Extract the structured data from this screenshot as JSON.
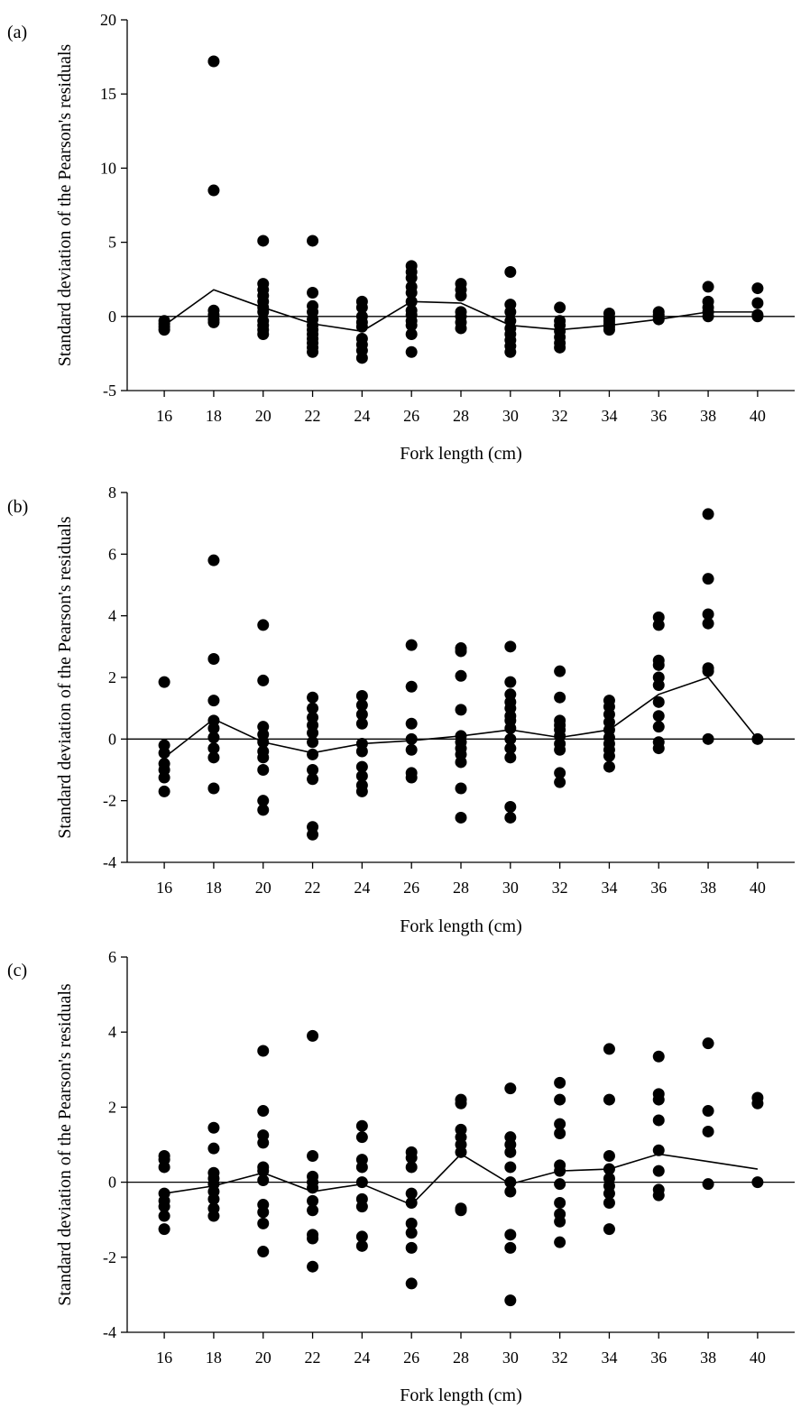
{
  "figure": {
    "colors": {
      "ink": "#000000",
      "background": "#ffffff"
    }
  },
  "chart_data": [
    {
      "type": "scatter",
      "panel_label": "(a)",
      "xlabel": "Fork length (cm)",
      "ylabel": "Standard deviation of the Pearson's residuals",
      "xlim": [
        14.5,
        41.5
      ],
      "ylim": [
        -5,
        20
      ],
      "x_ticks": [
        16,
        18,
        20,
        22,
        24,
        26,
        28,
        30,
        32,
        34,
        36,
        38,
        40
      ],
      "y_ticks": [
        -5,
        0,
        5,
        10,
        15,
        20
      ],
      "y_tick_labels": [
        "-5",
        "0",
        "5",
        "10",
        "15",
        "20"
      ],
      "reference_line_y": 0,
      "points": [
        [
          16,
          -0.3
        ],
        [
          16,
          -0.5
        ],
        [
          16,
          -0.7
        ],
        [
          16,
          -0.9
        ],
        [
          18,
          17.2
        ],
        [
          18,
          8.5
        ],
        [
          18,
          0.4
        ],
        [
          18,
          0.1
        ],
        [
          18,
          -0.2
        ],
        [
          18,
          -0.4
        ],
        [
          20,
          5.1
        ],
        [
          20,
          2.2
        ],
        [
          20,
          1.8
        ],
        [
          20,
          1.4
        ],
        [
          20,
          1.0
        ],
        [
          20,
          0.6
        ],
        [
          20,
          0.3
        ],
        [
          20,
          -0.3
        ],
        [
          20,
          -0.6
        ],
        [
          20,
          -0.9
        ],
        [
          20,
          -1.2
        ],
        [
          22,
          5.1
        ],
        [
          22,
          1.6
        ],
        [
          22,
          0.7
        ],
        [
          22,
          0.3
        ],
        [
          22,
          -0.2
        ],
        [
          22,
          -0.6
        ],
        [
          22,
          -0.9
        ],
        [
          22,
          -1.2
        ],
        [
          22,
          -1.5
        ],
        [
          22,
          -1.8
        ],
        [
          22,
          -2.1
        ],
        [
          22,
          -2.4
        ],
        [
          24,
          1.0
        ],
        [
          24,
          0.6
        ],
        [
          24,
          0.0
        ],
        [
          24,
          -0.4
        ],
        [
          24,
          -0.7
        ],
        [
          24,
          -1.5
        ],
        [
          24,
          -1.9
        ],
        [
          24,
          -2.3
        ],
        [
          24,
          -2.8
        ],
        [
          26,
          3.4
        ],
        [
          26,
          3.0
        ],
        [
          26,
          2.6
        ],
        [
          26,
          2.0
        ],
        [
          26,
          1.6
        ],
        [
          26,
          1.0
        ],
        [
          26,
          0.4
        ],
        [
          26,
          0.1
        ],
        [
          26,
          -0.3
        ],
        [
          26,
          -0.6
        ],
        [
          26,
          -1.2
        ],
        [
          26,
          -2.4
        ],
        [
          28,
          2.2
        ],
        [
          28,
          1.8
        ],
        [
          28,
          1.4
        ],
        [
          28,
          0.3
        ],
        [
          28,
          0.0
        ],
        [
          28,
          -0.4
        ],
        [
          28,
          -0.8
        ],
        [
          30,
          3.0
        ],
        [
          30,
          0.8
        ],
        [
          30,
          0.3
        ],
        [
          30,
          -0.3
        ],
        [
          30,
          -0.8
        ],
        [
          30,
          -1.2
        ],
        [
          30,
          -1.6
        ],
        [
          30,
          -2.0
        ],
        [
          30,
          -2.4
        ],
        [
          32,
          0.6
        ],
        [
          32,
          -0.3
        ],
        [
          32,
          -0.6
        ],
        [
          32,
          -1.0
        ],
        [
          32,
          -1.4
        ],
        [
          32,
          -1.8
        ],
        [
          32,
          -2.1
        ],
        [
          34,
          0.2
        ],
        [
          34,
          -0.1
        ],
        [
          34,
          -0.3
        ],
        [
          34,
          -0.5
        ],
        [
          34,
          -0.7
        ],
        [
          34,
          -0.9
        ],
        [
          36,
          0.3
        ],
        [
          36,
          0.1
        ],
        [
          36,
          -0.1
        ],
        [
          36,
          -0.2
        ],
        [
          38,
          2.0
        ],
        [
          38,
          1.0
        ],
        [
          38,
          0.6
        ],
        [
          38,
          0.3
        ],
        [
          38,
          0.0
        ],
        [
          40,
          1.9
        ],
        [
          40,
          0.9
        ],
        [
          40,
          0.1
        ],
        [
          40,
          0.0
        ]
      ],
      "line": {
        "x": [
          16,
          18,
          20,
          22,
          24,
          26,
          28,
          30,
          32,
          34,
          36,
          38,
          40
        ],
        "y": [
          -0.6,
          1.8,
          0.6,
          -0.5,
          -1.0,
          1.0,
          0.9,
          -0.6,
          -0.9,
          -0.6,
          -0.2,
          0.3,
          0.3
        ]
      }
    },
    {
      "type": "scatter",
      "panel_label": "(b)",
      "xlabel": "Fork length (cm)",
      "ylabel": "Standard deviation of the Pearson's residuals",
      "xlim": [
        14.5,
        41.5
      ],
      "ylim": [
        -4,
        8
      ],
      "x_ticks": [
        16,
        18,
        20,
        22,
        24,
        26,
        28,
        30,
        32,
        34,
        36,
        38,
        40
      ],
      "y_ticks": [
        -4,
        -2,
        0,
        2,
        4,
        6,
        8
      ],
      "y_tick_labels": [
        "-4",
        "-2",
        "0",
        "2",
        "4",
        "6",
        "8"
      ],
      "reference_line_y": 0,
      "points": [
        [
          16,
          1.85
        ],
        [
          16,
          -0.2
        ],
        [
          16,
          -0.45
        ],
        [
          16,
          -0.8
        ],
        [
          16,
          -1.0
        ],
        [
          16,
          -1.25
        ],
        [
          16,
          -1.7
        ],
        [
          18,
          5.8
        ],
        [
          18,
          2.6
        ],
        [
          18,
          1.25
        ],
        [
          18,
          0.6
        ],
        [
          18,
          0.35
        ],
        [
          18,
          0.05
        ],
        [
          18,
          -0.3
        ],
        [
          18,
          -0.6
        ],
        [
          18,
          -1.6
        ],
        [
          20,
          3.7
        ],
        [
          20,
          1.9
        ],
        [
          20,
          0.4
        ],
        [
          20,
          0.15
        ],
        [
          20,
          -0.1
        ],
        [
          20,
          -0.4
        ],
        [
          20,
          -0.6
        ],
        [
          20,
          -1.0
        ],
        [
          20,
          -2.0
        ],
        [
          20,
          -2.3
        ],
        [
          22,
          1.35
        ],
        [
          22,
          1.0
        ],
        [
          22,
          0.7
        ],
        [
          22,
          0.45
        ],
        [
          22,
          0.2
        ],
        [
          22,
          -0.1
        ],
        [
          22,
          -0.5
        ],
        [
          22,
          -1.0
        ],
        [
          22,
          -1.3
        ],
        [
          22,
          -2.85
        ],
        [
          22,
          -3.1
        ],
        [
          24,
          1.4
        ],
        [
          24,
          1.1
        ],
        [
          24,
          0.8
        ],
        [
          24,
          0.5
        ],
        [
          24,
          -0.15
        ],
        [
          24,
          -0.4
        ],
        [
          24,
          -0.9
        ],
        [
          24,
          -1.2
        ],
        [
          24,
          -1.5
        ],
        [
          24,
          -1.7
        ],
        [
          26,
          3.05
        ],
        [
          26,
          1.7
        ],
        [
          26,
          0.5
        ],
        [
          26,
          0.0
        ],
        [
          26,
          -0.35
        ],
        [
          26,
          -1.1
        ],
        [
          26,
          -1.25
        ],
        [
          28,
          2.95
        ],
        [
          28,
          2.85
        ],
        [
          28,
          2.05
        ],
        [
          28,
          0.95
        ],
        [
          28,
          0.1
        ],
        [
          28,
          -0.1
        ],
        [
          28,
          -0.3
        ],
        [
          28,
          -0.5
        ],
        [
          28,
          -0.75
        ],
        [
          28,
          -1.6
        ],
        [
          28,
          -2.55
        ],
        [
          30,
          3.0
        ],
        [
          30,
          1.85
        ],
        [
          30,
          1.45
        ],
        [
          30,
          1.2
        ],
        [
          30,
          1.0
        ],
        [
          30,
          0.75
        ],
        [
          30,
          0.6
        ],
        [
          30,
          0.35
        ],
        [
          30,
          0.0
        ],
        [
          30,
          -0.3
        ],
        [
          30,
          -0.6
        ],
        [
          30,
          -2.2
        ],
        [
          30,
          -2.55
        ],
        [
          32,
          2.2
        ],
        [
          32,
          1.35
        ],
        [
          32,
          0.6
        ],
        [
          32,
          0.45
        ],
        [
          32,
          0.3
        ],
        [
          32,
          0.1
        ],
        [
          32,
          -0.15
        ],
        [
          32,
          -0.35
        ],
        [
          32,
          -1.1
        ],
        [
          32,
          -1.4
        ],
        [
          34,
          1.25
        ],
        [
          34,
          1.05
        ],
        [
          34,
          0.8
        ],
        [
          34,
          0.55
        ],
        [
          34,
          0.3
        ],
        [
          34,
          0.05
        ],
        [
          34,
          -0.15
        ],
        [
          34,
          -0.35
        ],
        [
          34,
          -0.55
        ],
        [
          34,
          -0.9
        ],
        [
          36,
          3.95
        ],
        [
          36,
          3.7
        ],
        [
          36,
          2.55
        ],
        [
          36,
          2.4
        ],
        [
          36,
          2.0
        ],
        [
          36,
          1.75
        ],
        [
          36,
          1.2
        ],
        [
          36,
          0.75
        ],
        [
          36,
          0.4
        ],
        [
          36,
          -0.1
        ],
        [
          36,
          -0.3
        ],
        [
          38,
          7.3
        ],
        [
          38,
          5.2
        ],
        [
          38,
          4.05
        ],
        [
          38,
          3.75
        ],
        [
          38,
          2.3
        ],
        [
          38,
          2.2
        ],
        [
          38,
          0.0
        ],
        [
          40,
          0.0
        ]
      ],
      "line": {
        "x": [
          16,
          18,
          20,
          22,
          24,
          26,
          28,
          30,
          32,
          34,
          36,
          38,
          40
        ],
        "y": [
          -0.6,
          0.65,
          -0.1,
          -0.45,
          -0.15,
          -0.05,
          0.1,
          0.3,
          0.05,
          0.3,
          1.45,
          2.0,
          0.0
        ]
      }
    },
    {
      "type": "scatter",
      "panel_label": "(c)",
      "xlabel": "Fork length (cm)",
      "ylabel": "Standard deviation of the Pearson's residuals",
      "xlim": [
        14.5,
        41.5
      ],
      "ylim": [
        -4,
        6
      ],
      "x_ticks": [
        16,
        18,
        20,
        22,
        24,
        26,
        28,
        30,
        32,
        34,
        36,
        38,
        40
      ],
      "y_ticks": [
        -4,
        -2,
        0,
        2,
        4,
        6
      ],
      "y_tick_labels": [
        "-4",
        "-2",
        "0",
        "2",
        "4",
        "6"
      ],
      "reference_line_y": 0,
      "points": [
        [
          16,
          0.7
        ],
        [
          16,
          0.6
        ],
        [
          16,
          0.4
        ],
        [
          16,
          -0.3
        ],
        [
          16,
          -0.5
        ],
        [
          16,
          -0.65
        ],
        [
          16,
          -0.9
        ],
        [
          16,
          -1.25
        ],
        [
          18,
          1.45
        ],
        [
          18,
          0.9
        ],
        [
          18,
          0.25
        ],
        [
          18,
          0.1
        ],
        [
          18,
          -0.05
        ],
        [
          18,
          -0.25
        ],
        [
          18,
          -0.45
        ],
        [
          18,
          -0.7
        ],
        [
          18,
          -0.9
        ],
        [
          20,
          3.5
        ],
        [
          20,
          1.9
        ],
        [
          20,
          1.25
        ],
        [
          20,
          1.05
        ],
        [
          20,
          0.4
        ],
        [
          20,
          0.3
        ],
        [
          20,
          0.05
        ],
        [
          20,
          -0.6
        ],
        [
          20,
          -0.8
        ],
        [
          20,
          -1.1
        ],
        [
          20,
          -1.85
        ],
        [
          22,
          3.9
        ],
        [
          22,
          0.7
        ],
        [
          22,
          0.15
        ],
        [
          22,
          0.0
        ],
        [
          22,
          -0.15
        ],
        [
          22,
          -0.5
        ],
        [
          22,
          -0.75
        ],
        [
          22,
          -1.4
        ],
        [
          22,
          -1.5
        ],
        [
          22,
          -2.25
        ],
        [
          24,
          1.5
        ],
        [
          24,
          1.2
        ],
        [
          24,
          0.6
        ],
        [
          24,
          0.4
        ],
        [
          24,
          0.0
        ],
        [
          24,
          -0.45
        ],
        [
          24,
          -0.65
        ],
        [
          24,
          -1.45
        ],
        [
          24,
          -1.7
        ],
        [
          26,
          0.8
        ],
        [
          26,
          0.65
        ],
        [
          26,
          0.4
        ],
        [
          26,
          -0.3
        ],
        [
          26,
          -0.55
        ],
        [
          26,
          -1.1
        ],
        [
          26,
          -1.35
        ],
        [
          26,
          -1.75
        ],
        [
          26,
          -2.7
        ],
        [
          28,
          2.2
        ],
        [
          28,
          2.1
        ],
        [
          28,
          1.4
        ],
        [
          28,
          1.2
        ],
        [
          28,
          1.0
        ],
        [
          28,
          0.8
        ],
        [
          28,
          -0.7
        ],
        [
          28,
          -0.75
        ],
        [
          30,
          2.5
        ],
        [
          30,
          1.2
        ],
        [
          30,
          1.0
        ],
        [
          30,
          0.8
        ],
        [
          30,
          0.4
        ],
        [
          30,
          0.0
        ],
        [
          30,
          -0.25
        ],
        [
          30,
          -1.4
        ],
        [
          30,
          -1.75
        ],
        [
          30,
          -3.15
        ],
        [
          32,
          2.65
        ],
        [
          32,
          2.2
        ],
        [
          32,
          1.55
        ],
        [
          32,
          1.3
        ],
        [
          32,
          0.45
        ],
        [
          32,
          0.3
        ],
        [
          32,
          -0.05
        ],
        [
          32,
          -0.55
        ],
        [
          32,
          -0.85
        ],
        [
          32,
          -1.05
        ],
        [
          32,
          -1.6
        ],
        [
          34,
          3.55
        ],
        [
          34,
          2.2
        ],
        [
          34,
          0.7
        ],
        [
          34,
          0.35
        ],
        [
          34,
          0.1
        ],
        [
          34,
          -0.1
        ],
        [
          34,
          -0.3
        ],
        [
          34,
          -0.55
        ],
        [
          34,
          -1.25
        ],
        [
          36,
          3.35
        ],
        [
          36,
          2.35
        ],
        [
          36,
          2.2
        ],
        [
          36,
          1.65
        ],
        [
          36,
          0.85
        ],
        [
          36,
          0.3
        ],
        [
          36,
          -0.2
        ],
        [
          36,
          -0.35
        ],
        [
          38,
          3.7
        ],
        [
          38,
          1.9
        ],
        [
          38,
          1.35
        ],
        [
          38,
          -0.05
        ],
        [
          40,
          2.25
        ],
        [
          40,
          2.1
        ],
        [
          40,
          0.0
        ]
      ],
      "line": {
        "x": [
          16,
          18,
          20,
          22,
          24,
          26,
          28,
          30,
          32,
          34,
          36,
          38,
          40
        ],
        "y": [
          -0.3,
          -0.1,
          0.25,
          -0.25,
          -0.05,
          -0.6,
          0.75,
          -0.05,
          0.3,
          0.35,
          0.75,
          0.55,
          0.35
        ]
      }
    }
  ]
}
